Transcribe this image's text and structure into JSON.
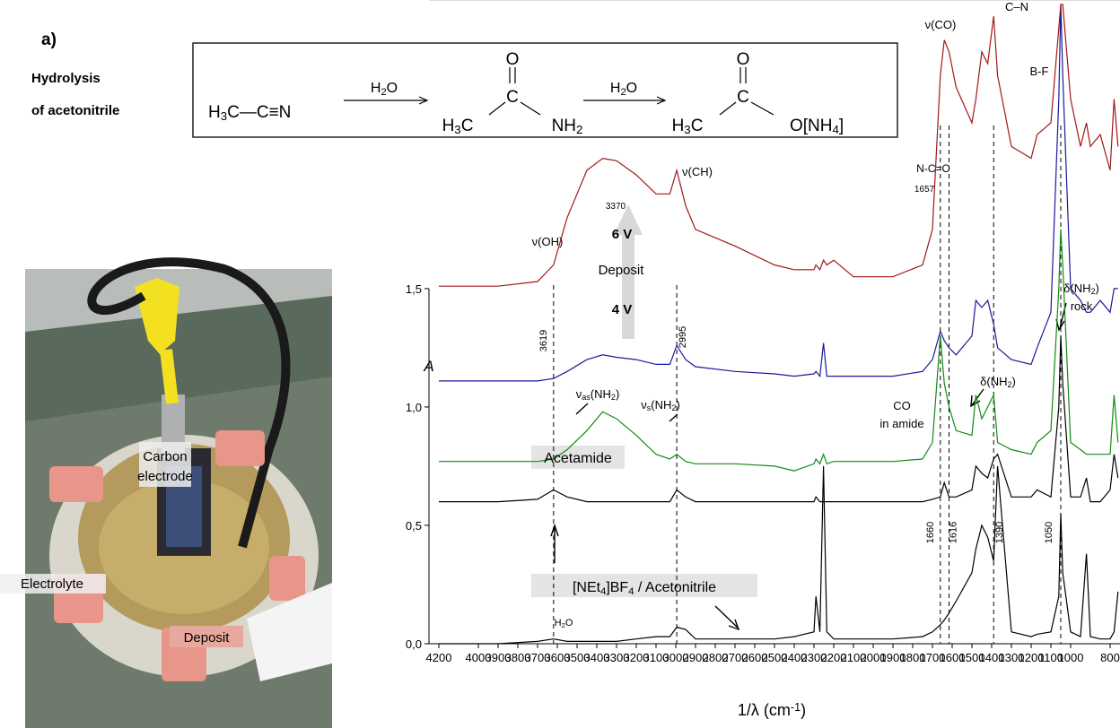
{
  "figure_label": "a)",
  "scheme": {
    "title": [
      "Hydrolysis",
      "of acetonitrile"
    ],
    "items": [
      {
        "parts": [
          "H",
          {
            "sub": "3"
          },
          "C—C≡N"
        ]
      },
      {
        "parts": [
          "H",
          {
            "sub": "2"
          },
          "O"
        ]
      },
      {
        "parts": [
          "O"
        ]
      },
      {
        "parts": [
          "C"
        ]
      },
      {
        "parts": [
          "H",
          {
            "sub": "3"
          },
          "C"
        ]
      },
      {
        "parts": [
          "NH",
          {
            "sub": "2"
          }
        ]
      },
      {
        "parts": [
          "H",
          {
            "sub": "2"
          },
          "O"
        ]
      },
      {
        "parts": [
          "O"
        ]
      },
      {
        "parts": [
          "C"
        ]
      },
      {
        "parts": [
          "H",
          {
            "sub": "3"
          },
          "C"
        ]
      },
      {
        "parts": [
          "O[NH",
          {
            "sub": "4"
          },
          "]"
        ]
      }
    ]
  },
  "photo": {
    "labels": [
      "Carbon",
      "electrode",
      "Electrolyte",
      "Deposit"
    ]
  },
  "chart_data": {
    "type": "line",
    "x_label": [
      "1/λ  (cm",
      {
        "sup": "-1"
      },
      ")"
    ],
    "y_label": "A",
    "xlim": [
      4250,
      750
    ],
    "ylim": [
      0,
      2.7
    ],
    "xticks": [
      4200,
      4000,
      3900,
      3800,
      3700,
      3600,
      3500,
      3400,
      3300,
      3200,
      3100,
      3000,
      2900,
      2800,
      2700,
      2600,
      2500,
      2400,
      2300,
      2200,
      2100,
      2000,
      1900,
      1800,
      1700,
      1600,
      1500,
      1400,
      1300,
      1200,
      1100,
      1000,
      800
    ],
    "yticks": [
      {
        "value": 0,
        "label": "0,0"
      },
      {
        "value": 0.5,
        "label": "0,5"
      },
      {
        "value": 1,
        "label": "1,0"
      },
      {
        "value": 1.5,
        "label": "1,5"
      }
    ],
    "reference_lines": [
      3619,
      2995,
      1660,
      1616,
      1390,
      1050
    ],
    "x": [
      4200,
      3900,
      3700,
      3619,
      3550,
      3450,
      3370,
      3300,
      3200,
      3100,
      3030,
      2995,
      2950,
      2900,
      2700,
      2500,
      2400,
      2300,
      2290,
      2270,
      2252,
      2235,
      2200,
      2100,
      1900,
      1750,
      1700,
      1660,
      1640,
      1616,
      1580,
      1500,
      1480,
      1450,
      1420,
      1390,
      1370,
      1300,
      1200,
      1170,
      1100,
      1060,
      1050,
      1040,
      1000,
      950,
      920,
      900,
      850,
      800,
      780,
      760
    ],
    "series": [
      {
        "color": "#000000",
        "values": [
          0,
          0,
          0.01,
          0.02,
          0.01,
          0.01,
          0.01,
          0.01,
          0.02,
          0.03,
          0.03,
          0.07,
          0.06,
          0.02,
          0.02,
          0.02,
          0.03,
          0.05,
          0.2,
          0.05,
          0.75,
          0.05,
          0.02,
          0.02,
          0.02,
          0.03,
          0.05,
          0.08,
          0.1,
          0.13,
          0.18,
          0.3,
          0.4,
          0.5,
          0.45,
          0.35,
          0.75,
          0.05,
          0.03,
          0.04,
          0.05,
          0.2,
          0.55,
          0.3,
          0.05,
          0.03,
          0.38,
          0.03,
          0.02,
          0.02,
          0.05,
          0.22
        ]
      },
      {
        "color": "#000000",
        "values": [
          0.6,
          0.6,
          0.61,
          0.65,
          0.62,
          0.6,
          0.6,
          0.6,
          0.6,
          0.6,
          0.6,
          0.65,
          0.62,
          0.6,
          0.6,
          0.6,
          0.6,
          0.6,
          0.62,
          0.6,
          0.6,
          0.6,
          0.6,
          0.6,
          0.6,
          0.6,
          0.61,
          0.62,
          0.68,
          0.62,
          0.62,
          0.65,
          0.75,
          0.72,
          0.7,
          0.78,
          0.8,
          0.62,
          0.62,
          0.65,
          0.62,
          1,
          1.3,
          1.1,
          0.62,
          0.62,
          0.7,
          0.6,
          0.6,
          0.65,
          0.8,
          0.7
        ]
      },
      {
        "color": "#138a13",
        "values": [
          0.77,
          0.77,
          0.77,
          0.78,
          0.82,
          0.9,
          0.98,
          0.95,
          0.88,
          0.8,
          0.78,
          0.8,
          0.77,
          0.76,
          0.76,
          0.75,
          0.73,
          0.76,
          0.78,
          0.76,
          0.8,
          0.76,
          0.77,
          0.77,
          0.77,
          0.78,
          0.85,
          1.3,
          1.1,
          1,
          0.9,
          0.88,
          1.05,
          0.95,
          1,
          1.05,
          0.85,
          0.82,
          0.8,
          0.85,
          0.9,
          1.5,
          1.75,
          1.6,
          0.85,
          0.82,
          0.8,
          0.8,
          0.8,
          0.8,
          1.05,
          0.85
        ]
      },
      {
        "color": "#1a1a9a",
        "values": [
          1.11,
          1.11,
          1.11,
          1.12,
          1.15,
          1.2,
          1.22,
          1.21,
          1.2,
          1.18,
          1.18,
          1.26,
          1.2,
          1.17,
          1.15,
          1.14,
          1.13,
          1.14,
          1.15,
          1.13,
          1.27,
          1.13,
          1.13,
          1.13,
          1.13,
          1.15,
          1.2,
          1.32,
          1.28,
          1.25,
          1.22,
          1.3,
          1.45,
          1.42,
          1.45,
          1.35,
          1.25,
          1.2,
          1.18,
          1.25,
          1.4,
          2.3,
          2.7,
          2.4,
          1.5,
          1.45,
          1.4,
          1.4,
          1.45,
          1.4,
          1.5,
          1.5
        ]
      },
      {
        "color": "#a01818",
        "values": [
          1.51,
          1.51,
          1.53,
          1.6,
          1.8,
          2,
          2.05,
          2.04,
          1.98,
          1.9,
          1.9,
          2,
          1.85,
          1.75,
          1.68,
          1.6,
          1.58,
          1.58,
          1.6,
          1.58,
          1.62,
          1.6,
          1.62,
          1.55,
          1.55,
          1.6,
          1.75,
          2.4,
          2.55,
          2.5,
          2.35,
          2.2,
          2.3,
          2.5,
          2.45,
          2.65,
          2.4,
          2.1,
          2.05,
          2.15,
          2.2,
          2.6,
          2.7,
          2.7,
          2.3,
          2.1,
          2.2,
          2.1,
          2.15,
          2,
          2.3,
          2.1
        ]
      }
    ],
    "annotations": [
      {
        "parts": [
          "ν(CO)"
        ]
      },
      {
        "parts": [
          "C–N"
        ]
      },
      {
        "parts": [
          "B-F"
        ]
      },
      {
        "parts": [
          "N-C=O"
        ]
      },
      {
        "parts": [
          "1657"
        ]
      },
      {
        "parts": [
          "ν(CH)"
        ]
      },
      {
        "parts": [
          "3370"
        ]
      },
      {
        "parts": [
          "ν(OH)"
        ]
      },
      {
        "parts": [
          "6 V"
        ]
      },
      {
        "parts": [
          "Deposit"
        ]
      },
      {
        "parts": [
          "4 V"
        ]
      },
      {
        "parts": [
          "δ(NH",
          {
            "sub": "2"
          },
          ")"
        ]
      },
      {
        "parts": [
          "rock"
        ]
      },
      {
        "parts": [
          "ν",
          {
            "sub": "as"
          },
          "(NH",
          {
            "sub": "2"
          },
          ")"
        ]
      },
      {
        "parts": [
          "ν",
          {
            "sub": "s"
          },
          "(NH",
          {
            "sub": "2"
          },
          ")"
        ]
      },
      {
        "parts": [
          "δ(NH",
          {
            "sub": "2"
          },
          ")"
        ]
      },
      {
        "parts": [
          "CO"
        ]
      },
      {
        "parts": [
          "in amide"
        ]
      },
      {
        "parts": [
          "Acetamide"
        ]
      },
      {
        "parts": [
          "[NEt",
          {
            "sub": "4"
          },
          "]BF",
          {
            "sub": "4"
          },
          " / Acetonitrile"
        ]
      },
      {
        "parts": [
          "H",
          {
            "sub": "2"
          },
          "O"
        ]
      }
    ]
  }
}
